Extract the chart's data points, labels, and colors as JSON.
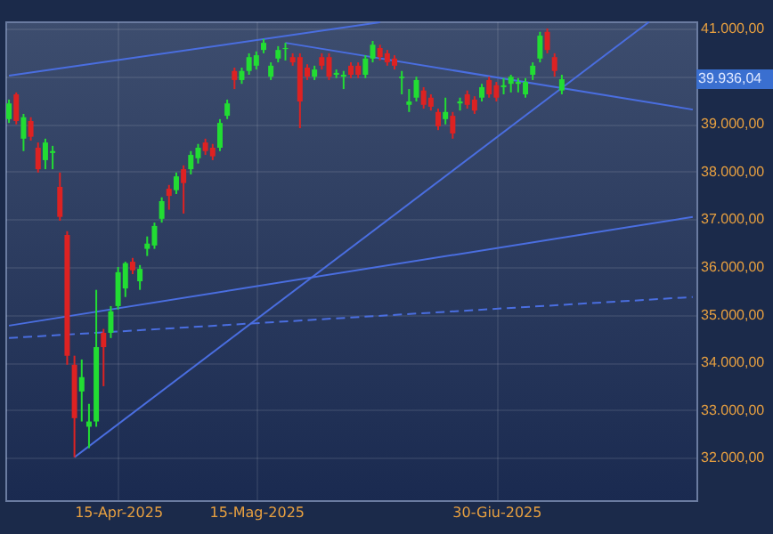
{
  "chart_data": {
    "type": "candlestick",
    "categories": [
      null,
      null,
      null,
      null,
      null,
      null,
      null,
      null,
      null,
      null,
      null,
      null,
      null,
      null,
      null,
      "15-Apr-2025",
      null,
      null,
      null,
      null,
      null,
      null,
      null,
      null,
      null,
      null,
      null,
      null,
      null,
      null,
      null,
      null,
      null,
      null,
      "15-Mag-2025",
      null,
      null,
      null,
      null,
      null,
      null,
      null,
      null,
      null,
      null,
      null,
      null,
      null,
      null,
      null,
      null,
      null,
      null,
      null,
      null,
      null,
      null,
      null,
      null,
      null,
      null,
      null,
      null,
      null,
      null,
      null,
      null,
      "30-Giu-2025",
      null,
      null,
      null,
      null,
      null,
      null,
      null,
      null,
      null,
      null,
      null,
      null,
      null,
      null,
      null,
      null,
      null,
      null,
      null,
      null,
      null,
      null,
      null,
      null,
      null,
      null,
      null
    ],
    "ohlc": [
      [
        39100,
        39510,
        39020,
        39430
      ],
      [
        39620,
        39660,
        38990,
        39060
      ],
      [
        38690,
        39210,
        38430,
        39140
      ],
      [
        39060,
        39140,
        38650,
        38730
      ],
      [
        38500,
        38610,
        37980,
        38050
      ],
      [
        38240,
        38690,
        38050,
        38610
      ],
      [
        38390,
        38540,
        38050,
        38430
      ],
      [
        37680,
        37980,
        36970,
        37050
      ],
      [
        36670,
        36750,
        33950,
        34140
      ],
      [
        33950,
        34140,
        32010,
        32830
      ],
      [
        33390,
        34060,
        32760,
        33690
      ],
      [
        32650,
        33130,
        32200,
        32760
      ],
      [
        32760,
        35520,
        32650,
        34320
      ],
      [
        34620,
        34700,
        33500,
        34320
      ],
      [
        34620,
        35180,
        34510,
        35070
      ],
      [
        35180,
        36000,
        35110,
        35890
      ],
      [
        35550,
        36110,
        35370,
        36080
      ],
      [
        36110,
        36190,
        35850,
        35930
      ],
      [
        35700,
        36040,
        35520,
        35960
      ],
      [
        36380,
        36640,
        36230,
        36490
      ],
      [
        36450,
        36930,
        36380,
        36860
      ],
      [
        37010,
        37460,
        36930,
        37380
      ],
      [
        37640,
        37720,
        37200,
        37490
      ],
      [
        37610,
        37980,
        37530,
        37900
      ],
      [
        38050,
        38130,
        37120,
        37760
      ],
      [
        38050,
        38430,
        37940,
        38350
      ],
      [
        38280,
        38580,
        38170,
        38500
      ],
      [
        38610,
        38690,
        38350,
        38430
      ],
      [
        38500,
        38580,
        38240,
        38320
      ],
      [
        38500,
        39100,
        38430,
        39020
      ],
      [
        39170,
        39510,
        39100,
        39430
      ],
      [
        40110,
        40180,
        39730,
        39920
      ],
      [
        39920,
        40180,
        39840,
        40110
      ],
      [
        40110,
        40480,
        40030,
        40400
      ],
      [
        40220,
        40520,
        40140,
        40440
      ],
      [
        40550,
        40780,
        40480,
        40700
      ],
      [
        39990,
        40290,
        39920,
        40220
      ],
      [
        40370,
        40630,
        40290,
        40550
      ],
      [
        40570,
        40700,
        40330,
        40590
      ],
      [
        40400,
        40480,
        40220,
        40290
      ],
      [
        40400,
        40480,
        38910,
        39470
      ],
      [
        40180,
        40250,
        39920,
        39990
      ],
      [
        39990,
        40220,
        39920,
        40140
      ],
      [
        40400,
        40480,
        40140,
        40220
      ],
      [
        40400,
        40480,
        39920,
        39990
      ],
      [
        40030,
        40140,
        39960,
        40070
      ],
      [
        39990,
        40110,
        39730,
        40030
      ],
      [
        40220,
        40290,
        39960,
        40030
      ],
      [
        40220,
        40290,
        39960,
        40030
      ],
      [
        40030,
        40440,
        39960,
        40370
      ],
      [
        40370,
        40740,
        40290,
        40660
      ],
      [
        40590,
        40660,
        40330,
        40400
      ],
      [
        40480,
        40550,
        40220,
        40290
      ],
      [
        40370,
        40440,
        40140,
        40220
      ],
      [
        39960,
        40110,
        39620,
        39990
      ],
      [
        39400,
        39730,
        39250,
        39470
      ],
      [
        39550,
        39990,
        39470,
        39920
      ],
      [
        39700,
        39770,
        39320,
        39400
      ],
      [
        39550,
        39620,
        39280,
        39360
      ],
      [
        39250,
        39320,
        38870,
        38950
      ],
      [
        39100,
        39550,
        38990,
        39250
      ],
      [
        39170,
        39250,
        38690,
        38800
      ],
      [
        39430,
        39550,
        39280,
        39470
      ],
      [
        39620,
        39700,
        39320,
        39400
      ],
      [
        39510,
        39580,
        39210,
        39280
      ],
      [
        39550,
        39840,
        39470,
        39770
      ],
      [
        39920,
        39990,
        39550,
        39620
      ],
      [
        39810,
        39880,
        39470,
        39550
      ],
      [
        39770,
        39960,
        39620,
        39810
      ],
      [
        39840,
        40030,
        39660,
        39990
      ],
      [
        39840,
        39960,
        39660,
        39880
      ],
      [
        39620,
        39960,
        39550,
        39880
      ],
      [
        40030,
        40290,
        39920,
        40220
      ],
      [
        40370,
        40930,
        40290,
        40850
      ],
      [
        40930,
        41000,
        40480,
        40550
      ],
      [
        40400,
        40480,
        39990,
        40110
      ],
      [
        39700,
        40030,
        39620,
        39936.04
      ],
      null,
      null,
      null,
      null,
      null,
      null,
      null,
      null,
      null,
      null,
      null,
      null,
      null,
      null,
      null,
      null,
      null,
      null
    ],
    "colors": [
      "#22dd33",
      "#dd2222",
      "#22dd33",
      "#dd2222",
      "#dd2222",
      "#22dd33",
      "#22dd33",
      "#dd2222",
      "#dd2222",
      "#dd2222",
      "#22dd33",
      "#22dd33",
      "#22dd33",
      "#dd2222",
      "#22dd33",
      "#22dd33",
      "#22dd33",
      "#dd2222",
      "#22dd33",
      "#22dd33",
      "#22dd33",
      "#22dd33",
      "#dd2222",
      "#22dd33",
      "#dd2222",
      "#22dd33",
      "#22dd33",
      "#dd2222",
      "#dd2222",
      "#22dd33",
      "#22dd33",
      "#dd2222",
      "#22dd33",
      "#22dd33",
      "#22dd33",
      "#22dd33",
      "#22dd33",
      "#22dd33",
      "#22dd33",
      "#dd2222",
      "#dd2222",
      "#dd2222",
      "#22dd33",
      "#dd2222",
      "#dd2222",
      "#22dd33",
      "#22dd33",
      "#dd2222",
      "#dd2222",
      "#22dd33",
      "#22dd33",
      "#dd2222",
      "#dd2222",
      "#dd2222",
      "#22dd33",
      "#22dd33",
      "#22dd33",
      "#dd2222",
      "#dd2222",
      "#dd2222",
      "#22dd33",
      "#dd2222",
      "#22dd33",
      "#dd2222",
      "#dd2222",
      "#22dd33",
      "#dd2222",
      "#dd2222",
      "#22dd33",
      "#22dd33",
      "#22dd33",
      "#22dd33",
      "#22dd33",
      "#22dd33",
      "#dd2222",
      "#dd2222",
      "#22dd33",
      null,
      null,
      null,
      null,
      null,
      null,
      null,
      null,
      null,
      null,
      null,
      null,
      null,
      null,
      null,
      null,
      null,
      null
    ],
    "series": [
      {
        "type": "line",
        "color": "#4a6ee0",
        "values": [
          40010,
          null,
          null,
          null,
          null,
          null,
          null,
          null,
          null,
          null,
          null,
          null,
          null,
          null,
          null,
          null,
          null,
          null,
          null,
          null,
          null,
          null,
          null,
          null,
          null,
          null,
          null,
          null,
          null,
          null,
          null,
          null,
          null,
          null,
          null,
          null,
          null,
          null,
          null,
          null,
          null,
          null,
          null,
          null,
          null,
          null,
          null,
          null,
          null,
          null,
          null,
          41130,
          null,
          null,
          null,
          null,
          null,
          null,
          null,
          null,
          null,
          null,
          null,
          null,
          null,
          null,
          null,
          null,
          null,
          null,
          null,
          null,
          null,
          null,
          null,
          null,
          null,
          null,
          null,
          null,
          null,
          null,
          null,
          null,
          null,
          null,
          null,
          null,
          null,
          null,
          null,
          null,
          null,
          null,
          null
        ]
      },
      {
        "type": "line",
        "color": "#4a6ee0",
        "values": [
          null,
          null,
          null,
          null,
          null,
          null,
          null,
          null,
          null,
          null,
          null,
          null,
          null,
          null,
          null,
          null,
          null,
          null,
          null,
          null,
          null,
          null,
          null,
          null,
          null,
          null,
          null,
          null,
          null,
          null,
          null,
          null,
          null,
          null,
          null,
          null,
          null,
          null,
          40700,
          null,
          null,
          null,
          null,
          null,
          null,
          null,
          null,
          null,
          null,
          null,
          null,
          null,
          null,
          null,
          null,
          null,
          null,
          null,
          null,
          null,
          null,
          null,
          null,
          null,
          null,
          null,
          null,
          null,
          null,
          null,
          null,
          null,
          null,
          null,
          null,
          null,
          null,
          null,
          null,
          null,
          null,
          null,
          null,
          null,
          null,
          null,
          null,
          null,
          null,
          null,
          null,
          null,
          null,
          null,
          39300
        ]
      },
      {
        "type": "line",
        "color": "#4a6ee0",
        "values": [
          null,
          null,
          null,
          null,
          null,
          null,
          null,
          null,
          null,
          32010,
          null,
          null,
          null,
          null,
          null,
          null,
          null,
          null,
          null,
          null,
          null,
          null,
          null,
          null,
          null,
          null,
          null,
          null,
          null,
          null,
          null,
          null,
          null,
          null,
          null,
          null,
          null,
          null,
          null,
          null,
          null,
          null,
          null,
          null,
          null,
          null,
          null,
          null,
          null,
          null,
          null,
          null,
          null,
          null,
          null,
          null,
          null,
          null,
          null,
          null,
          null,
          null,
          null,
          null,
          null,
          null,
          null,
          null,
          null,
          null,
          null,
          null,
          null,
          null,
          null,
          null,
          null,
          null,
          null,
          null,
          null,
          null,
          null,
          null,
          null,
          null,
          null,
          null,
          41140,
          null,
          null,
          null,
          null,
          null,
          null
        ]
      },
      {
        "type": "line",
        "color": "#4a6ee0",
        "values": [
          34770,
          null,
          null,
          null,
          null,
          null,
          null,
          null,
          null,
          null,
          null,
          null,
          null,
          null,
          null,
          null,
          null,
          null,
          null,
          null,
          null,
          null,
          null,
          null,
          null,
          null,
          null,
          null,
          null,
          null,
          null,
          null,
          null,
          null,
          null,
          null,
          null,
          null,
          null,
          null,
          null,
          null,
          null,
          null,
          null,
          null,
          null,
          null,
          null,
          null,
          null,
          null,
          null,
          null,
          null,
          null,
          null,
          null,
          null,
          null,
          null,
          null,
          null,
          null,
          null,
          null,
          null,
          null,
          null,
          null,
          null,
          null,
          null,
          null,
          null,
          null,
          null,
          null,
          null,
          null,
          null,
          null,
          null,
          null,
          null,
          null,
          null,
          null,
          null,
          null,
          null,
          null,
          null,
          null,
          37050
        ]
      },
      {
        "type": "line",
        "color": "#4a6ee0",
        "line_style": "dashed",
        "values": [
          34510,
          null,
          null,
          null,
          null,
          null,
          null,
          null,
          null,
          null,
          null,
          null,
          null,
          null,
          null,
          null,
          null,
          null,
          null,
          null,
          null,
          null,
          null,
          null,
          null,
          null,
          null,
          null,
          null,
          null,
          null,
          null,
          null,
          null,
          null,
          null,
          null,
          null,
          null,
          null,
          null,
          null,
          null,
          null,
          null,
          null,
          null,
          null,
          null,
          null,
          null,
          null,
          null,
          null,
          null,
          null,
          null,
          null,
          null,
          null,
          null,
          null,
          null,
          null,
          null,
          null,
          null,
          null,
          null,
          null,
          null,
          null,
          null,
          null,
          null,
          null,
          null,
          null,
          null,
          null,
          null,
          null,
          null,
          null,
          null,
          null,
          null,
          null,
          null,
          null,
          null,
          null,
          null,
          null,
          35370
        ]
      }
    ],
    "ylim": [
      31110,
      41150
    ],
    "yticks": [
      {
        "value": 32000,
        "label": "32.000,00"
      },
      {
        "value": 33000,
        "label": "33.000,00"
      },
      {
        "value": 34000,
        "label": "34.000,00"
      },
      {
        "value": 35000,
        "label": "35.000,00"
      },
      {
        "value": 36000,
        "label": "36.000,00"
      },
      {
        "value": 37000,
        "label": "37.000,00"
      },
      {
        "value": 38000,
        "label": "38.000,00"
      },
      {
        "value": 39000,
        "label": "39.000,00"
      },
      {
        "value": 40000,
        "label": null
      },
      {
        "value": 41000,
        "label": "41.000,00"
      }
    ],
    "annotations": [
      "39.936,04"
    ],
    "grid": true
  }
}
